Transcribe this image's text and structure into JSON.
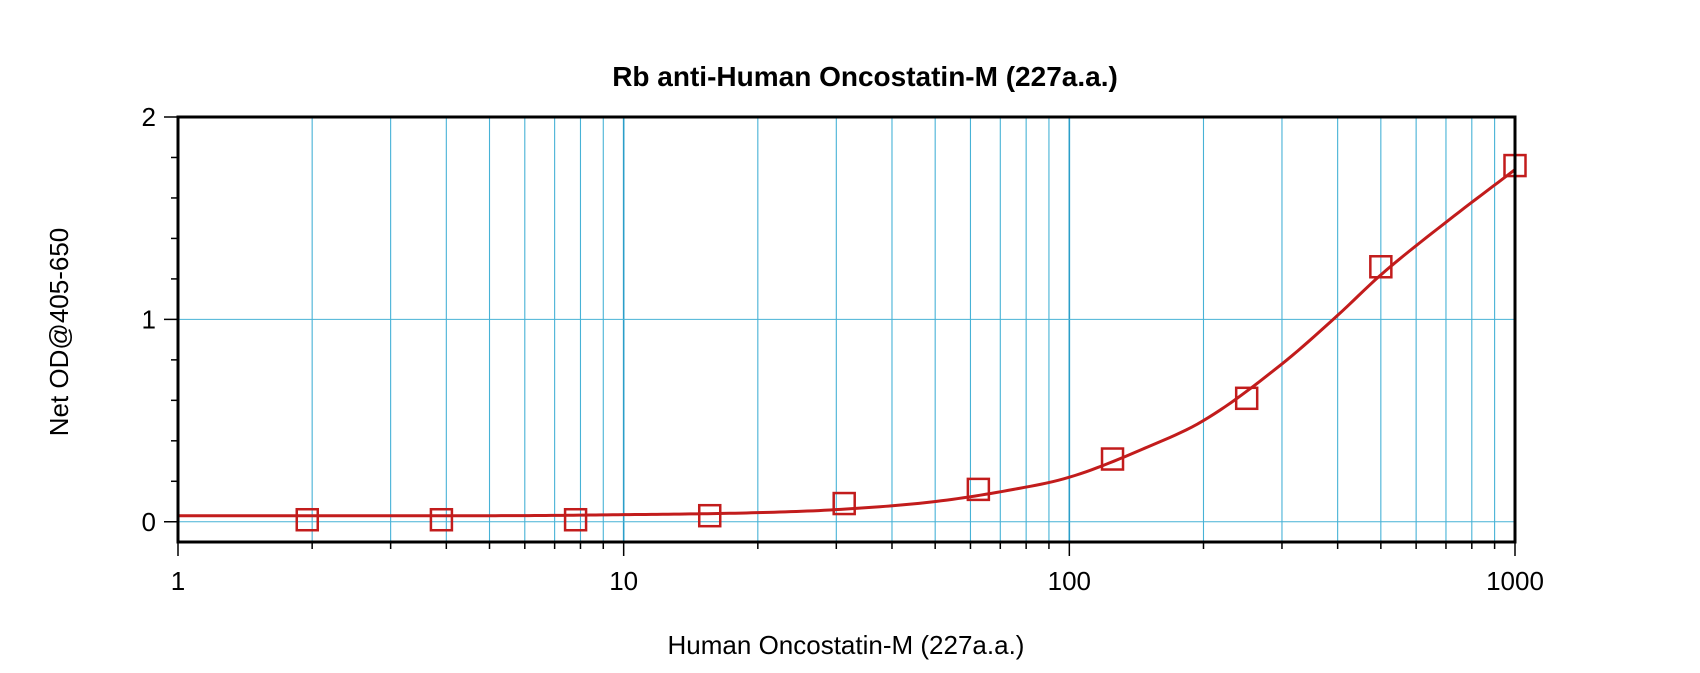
{
  "chart_data": {
    "type": "scatter",
    "title": "Rb anti-Human Oncostatin-M (227a.a.)",
    "xlabel": "Human Oncostatin-M (227a.a.)",
    "ylabel": "Net OD@405-650",
    "x_scale": "log",
    "xlim": [
      1,
      1000
    ],
    "ylim": [
      -0.1,
      2
    ],
    "x_ticks": [
      1,
      10,
      100,
      1000
    ],
    "x_tick_labels": [
      "1",
      "10",
      "100",
      "1000"
    ],
    "y_ticks": [
      0,
      1,
      2
    ],
    "y_tick_labels": [
      "0",
      "1",
      "2"
    ],
    "grid": true,
    "colors": {
      "series": "#c21c1c",
      "grid": "#2a9ec9"
    },
    "series": [
      {
        "marker": "square",
        "x": [
          1.95,
          3.9,
          7.8,
          15.6,
          31.25,
          62.5,
          125,
          250,
          500,
          1000
        ],
        "y": [
          0.01,
          0.01,
          0.01,
          0.03,
          0.09,
          0.16,
          0.31,
          0.61,
          1.26,
          1.76
        ]
      }
    ],
    "fit_curve": {
      "x": [
        1,
        2,
        5,
        10,
        20,
        30,
        50,
        75,
        100,
        150,
        200,
        300,
        400,
        500,
        700,
        1000
      ],
      "y": [
        0.03,
        0.03,
        0.03,
        0.035,
        0.045,
        0.06,
        0.1,
        0.16,
        0.22,
        0.37,
        0.5,
        0.78,
        1.02,
        1.22,
        1.48,
        1.74
      ]
    }
  }
}
